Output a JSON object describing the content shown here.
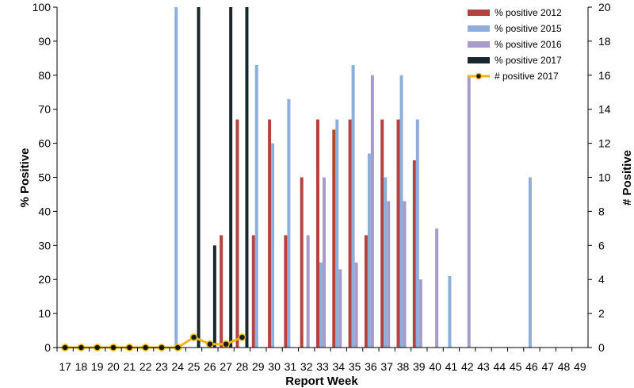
{
  "chart_data": {
    "type": "bar",
    "xlabel": "Report Week",
    "ylabel": "% Positive",
    "y2label": "# Positive",
    "ylim": [
      0,
      100
    ],
    "y2lim": [
      0,
      20
    ],
    "yticks": [
      "0",
      "10",
      "20",
      "30",
      "40",
      "50",
      "60",
      "70",
      "80",
      "90",
      "100"
    ],
    "y2ticks": [
      "0",
      "2",
      "4",
      "6",
      "8",
      "10",
      "12",
      "14",
      "16",
      "18",
      "20"
    ],
    "categories": [
      "17",
      "18",
      "19",
      "20",
      "21",
      "22",
      "23",
      "24",
      "25",
      "26",
      "27",
      "28",
      "29",
      "30",
      "31",
      "32",
      "33",
      "34",
      "35",
      "36",
      "37",
      "38",
      "39",
      "40",
      "41",
      "42",
      "43",
      "44",
      "45",
      "46",
      "47",
      "48",
      "49"
    ],
    "legend_position": "top-right",
    "series": [
      {
        "name": "% positive 2012",
        "color": "#b5423e",
        "values": [
          null,
          null,
          null,
          null,
          null,
          null,
          null,
          null,
          null,
          null,
          33,
          67,
          33,
          67,
          33,
          50,
          67,
          64,
          67,
          33,
          67,
          67,
          55,
          null,
          null,
          null,
          null,
          null,
          null,
          null,
          null,
          null,
          null
        ]
      },
      {
        "name": "% positive 2015",
        "color": "#8eaedb",
        "values": [
          null,
          null,
          null,
          null,
          null,
          null,
          null,
          100,
          null,
          null,
          null,
          null,
          83,
          60,
          73,
          null,
          25,
          67,
          83,
          57,
          50,
          80,
          67,
          null,
          21,
          null,
          null,
          null,
          null,
          50,
          null,
          null,
          null
        ]
      },
      {
        "name": "% positive 2016",
        "color": "#a99bc9",
        "values": [
          null,
          null,
          null,
          null,
          null,
          null,
          null,
          null,
          null,
          null,
          null,
          null,
          null,
          null,
          null,
          33,
          50,
          23,
          25,
          80,
          43,
          43,
          20,
          35,
          null,
          80,
          null,
          null,
          null,
          null,
          null,
          null,
          null
        ]
      },
      {
        "name": "% positive 2017",
        "color": "#17282d",
        "values": [
          null,
          null,
          null,
          null,
          null,
          null,
          null,
          null,
          100,
          30,
          100,
          100,
          null,
          null,
          null,
          null,
          null,
          null,
          null,
          null,
          null,
          null,
          null,
          null,
          null,
          null,
          null,
          null,
          null,
          null,
          null,
          null,
          null
        ]
      },
      {
        "name": "# positive 2017",
        "type": "line",
        "axis": "right",
        "color": "#f2b414",
        "marker_color": "#1a1a1a",
        "values": [
          0,
          0,
          0,
          0,
          0,
          0,
          0,
          0,
          0.6,
          0.2,
          0.2,
          0.6,
          null,
          null,
          null,
          null,
          null,
          null,
          null,
          null,
          null,
          null,
          null,
          null,
          null,
          null,
          null,
          null,
          null,
          null,
          null,
          null,
          null
        ]
      }
    ]
  }
}
